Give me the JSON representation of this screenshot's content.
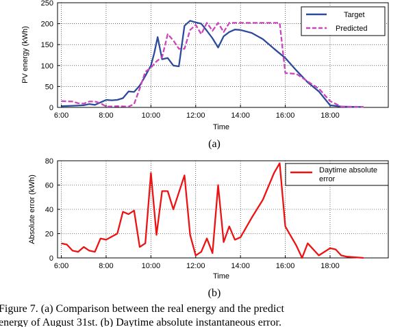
{
  "chart_data": [
    {
      "type": "line",
      "xlabel": "Time",
      "ylabel": "PV energy (kWh)",
      "x_tick_labels": [
        "6:00",
        "8:00",
        "10:00",
        "12:00",
        "14:00",
        "16:00",
        "18:00"
      ],
      "x_tick_hours": [
        6,
        8,
        10,
        12,
        14,
        16,
        18
      ],
      "xlim_hours": [
        5.83,
        20.6
      ],
      "ylim": [
        0,
        250
      ],
      "y_ticks": [
        0,
        50,
        100,
        150,
        200,
        250
      ],
      "grid": true,
      "legend_position": "top-right",
      "subfigure_label": "(a)",
      "colors": {
        "Target": "#2b4a9b",
        "Predicted": "#cc44bb"
      },
      "series": [
        {
          "name": "Target",
          "style": "solid",
          "points": [
            [
              6.0,
              3
            ],
            [
              6.5,
              4
            ],
            [
              7.0,
              5
            ],
            [
              7.25,
              8
            ],
            [
              7.5,
              6
            ],
            [
              7.75,
              12
            ],
            [
              8.0,
              18
            ],
            [
              8.25,
              17
            ],
            [
              8.5,
              18
            ],
            [
              8.75,
              22
            ],
            [
              9.0,
              38
            ],
            [
              9.25,
              37
            ],
            [
              9.5,
              52
            ],
            [
              9.75,
              75
            ],
            [
              10.0,
              100
            ],
            [
              10.15,
              130
            ],
            [
              10.3,
              168
            ],
            [
              10.5,
              115
            ],
            [
              10.75,
              118
            ],
            [
              11.0,
              100
            ],
            [
              11.25,
              98
            ],
            [
              11.5,
              195
            ],
            [
              11.75,
              207
            ],
            [
              12.0,
              203
            ],
            [
              12.25,
              200
            ],
            [
              12.5,
              183
            ],
            [
              12.75,
              165
            ],
            [
              13.0,
              143
            ],
            [
              13.25,
              170
            ],
            [
              13.5,
              180
            ],
            [
              13.75,
              186
            ],
            [
              14.0,
              185
            ],
            [
              14.5,
              178
            ],
            [
              15.0,
              163
            ],
            [
              15.5,
              140
            ],
            [
              16.0,
              118
            ],
            [
              16.5,
              88
            ],
            [
              17.0,
              60
            ],
            [
              17.5,
              38
            ],
            [
              18.0,
              5
            ],
            [
              18.5,
              2
            ],
            [
              19.5,
              1
            ]
          ]
        },
        {
          "name": "Predicted",
          "style": "dashed",
          "points": [
            [
              6.0,
              15
            ],
            [
              6.5,
              14
            ],
            [
              6.75,
              10
            ],
            [
              7.0,
              9
            ],
            [
              7.25,
              14
            ],
            [
              7.5,
              14
            ],
            [
              7.75,
              10
            ],
            [
              8.0,
              2
            ],
            [
              8.5,
              3
            ],
            [
              9.0,
              2
            ],
            [
              9.25,
              8
            ],
            [
              9.5,
              45
            ],
            [
              9.75,
              85
            ],
            [
              10.0,
              95
            ],
            [
              10.25,
              110
            ],
            [
              10.5,
              120
            ],
            [
              10.75,
              175
            ],
            [
              11.0,
              160
            ],
            [
              11.25,
              140
            ],
            [
              11.5,
              140
            ],
            [
              11.75,
              185
            ],
            [
              12.0,
              197
            ],
            [
              12.25,
              175
            ],
            [
              12.5,
              202
            ],
            [
              12.75,
              183
            ],
            [
              13.0,
              202
            ],
            [
              13.25,
              180
            ],
            [
              13.5,
              202
            ],
            [
              15.75,
              202
            ],
            [
              16.0,
              82
            ],
            [
              16.5,
              80
            ],
            [
              17.0,
              62
            ],
            [
              17.5,
              45
            ],
            [
              18.0,
              15
            ],
            [
              18.5,
              2
            ],
            [
              19.5,
              1
            ]
          ]
        }
      ]
    },
    {
      "type": "line",
      "xlabel": "Time",
      "ylabel": "Absolute error (kWh)",
      "x_tick_labels": [
        "6:00",
        "8:00",
        "10:00",
        "12:00",
        "14:00",
        "16:00",
        "18:00"
      ],
      "x_tick_hours": [
        6,
        8,
        10,
        12,
        14,
        16,
        18
      ],
      "xlim_hours": [
        5.83,
        20.6
      ],
      "ylim": [
        0,
        80
      ],
      "y_ticks": [
        0,
        20,
        40,
        60,
        80
      ],
      "grid": true,
      "legend_position": "top-right",
      "subfigure_label": "(b)",
      "colors": {
        "Daytime absolute error": "#ee1111"
      },
      "series": [
        {
          "name": "Daytime absolute error",
          "legend_lines": [
            "Daytime absolute",
            "error"
          ],
          "style": "solid",
          "points": [
            [
              6.0,
              12
            ],
            [
              6.25,
              11
            ],
            [
              6.5,
              6
            ],
            [
              6.75,
              5
            ],
            [
              7.0,
              9
            ],
            [
              7.25,
              6
            ],
            [
              7.5,
              5
            ],
            [
              7.75,
              16
            ],
            [
              8.0,
              15
            ],
            [
              8.5,
              20
            ],
            [
              8.75,
              38
            ],
            [
              9.0,
              36
            ],
            [
              9.25,
              39
            ],
            [
              9.5,
              9
            ],
            [
              9.75,
              12
            ],
            [
              10.0,
              70
            ],
            [
              10.25,
              19
            ],
            [
              10.5,
              55
            ],
            [
              10.75,
              55
            ],
            [
              11.0,
              40
            ],
            [
              11.5,
              68
            ],
            [
              11.75,
              19
            ],
            [
              12.0,
              2
            ],
            [
              12.25,
              5
            ],
            [
              12.5,
              16
            ],
            [
              12.75,
              4
            ],
            [
              13.0,
              60
            ],
            [
              13.25,
              13
            ],
            [
              13.5,
              26
            ],
            [
              13.75,
              15
            ],
            [
              14.0,
              17
            ],
            [
              14.5,
              33
            ],
            [
              15.0,
              48
            ],
            [
              15.5,
              70
            ],
            [
              15.75,
              78
            ],
            [
              16.0,
              26
            ],
            [
              16.25,
              18
            ],
            [
              16.5,
              10
            ],
            [
              16.75,
              0
            ],
            [
              17.0,
              12
            ],
            [
              17.5,
              2
            ],
            [
              18.0,
              8
            ],
            [
              18.25,
              7
            ],
            [
              18.5,
              2
            ],
            [
              18.75,
              1
            ],
            [
              19.5,
              0
            ]
          ]
        }
      ]
    }
  ],
  "caption": {
    "line1": "Figure 7.   (a)  Comparison  between  the  real  energy  and  the  predict",
    "line2": "energy of August 31st. (b) Daytime absolute instantaneous error."
  }
}
